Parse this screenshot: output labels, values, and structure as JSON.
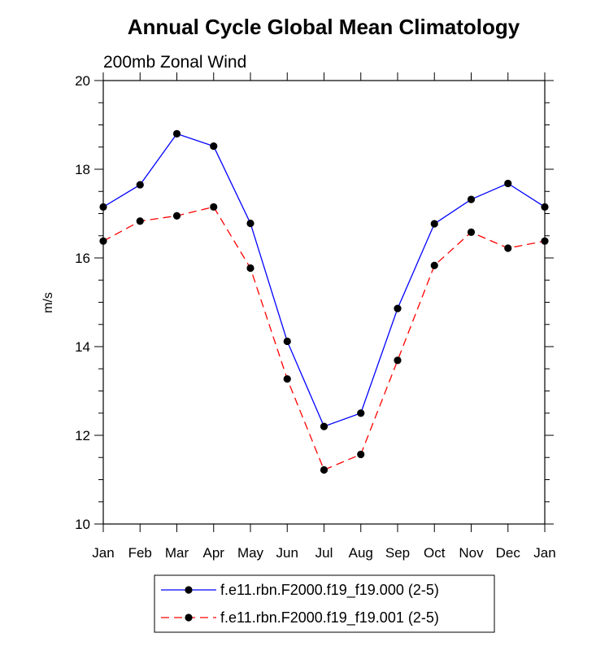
{
  "chart_data": {
    "type": "line",
    "title": "Annual Cycle Global Mean Climatology",
    "subtitle": "200mb Zonal Wind",
    "xlabel": "",
    "ylabel": "m/s",
    "categories": [
      "Jan",
      "Feb",
      "Mar",
      "Apr",
      "May",
      "Jun",
      "Jul",
      "Aug",
      "Sep",
      "Oct",
      "Nov",
      "Dec",
      "Jan"
    ],
    "ylim": [
      10,
      20
    ],
    "yticks": [
      10,
      12,
      14,
      16,
      18,
      20
    ],
    "grid": false,
    "legend_position": "bottom-center",
    "series": [
      {
        "name": "f.e11.rbn.F2000.f19_f19.000 (2-5)",
        "color": "#0000ff",
        "line_style": "solid",
        "marker": "filled-circle",
        "values": [
          17.15,
          17.65,
          18.8,
          18.52,
          16.78,
          14.12,
          12.2,
          12.5,
          14.86,
          16.77,
          17.32,
          17.68,
          17.15
        ]
      },
      {
        "name": "f.e11.rbn.F2000.f19_f19.001 (2-5)",
        "color": "#ff0000",
        "line_style": "dashed",
        "marker": "filled-circle",
        "values": [
          16.38,
          16.83,
          16.95,
          17.15,
          15.77,
          13.27,
          11.22,
          11.57,
          13.69,
          15.83,
          16.58,
          16.22,
          16.38
        ]
      }
    ]
  }
}
